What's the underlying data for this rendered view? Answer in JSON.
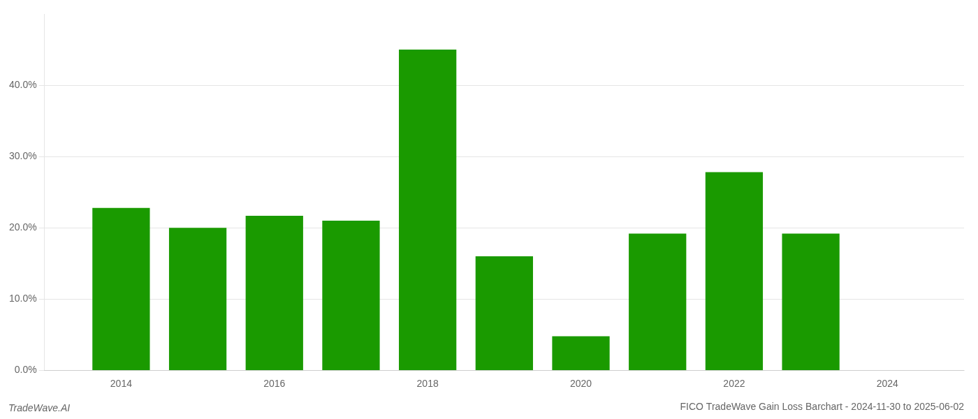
{
  "chart_data": {
    "type": "bar",
    "title": "FICO TradeWave Gain Loss Barchart - 2024-11-30 to 2025-06-02",
    "annotations": [
      "TradeWave.AI"
    ],
    "x": [
      2014,
      2015,
      2016,
      2017,
      2018,
      2019,
      2020,
      2021,
      2022,
      2023
    ],
    "values": [
      0.228,
      0.2,
      0.217,
      0.21,
      0.45,
      0.16,
      0.048,
      0.192,
      0.278,
      0.192
    ],
    "color": "#1a9a00",
    "xlim": [
      2013.0,
      2025.0
    ],
    "xticks": [
      2014,
      2016,
      2018,
      2020,
      2022,
      2024
    ],
    "ylim": [
      0.0,
      0.5
    ],
    "yticks": [
      {
        "value": 0.0,
        "label": "0.0%"
      },
      {
        "value": 0.1,
        "label": "10.0%"
      },
      {
        "value": 0.2,
        "label": "20.0%"
      },
      {
        "value": 0.3,
        "label": "30.0%"
      },
      {
        "value": 0.4,
        "label": "40.0%"
      }
    ],
    "grid": true
  }
}
